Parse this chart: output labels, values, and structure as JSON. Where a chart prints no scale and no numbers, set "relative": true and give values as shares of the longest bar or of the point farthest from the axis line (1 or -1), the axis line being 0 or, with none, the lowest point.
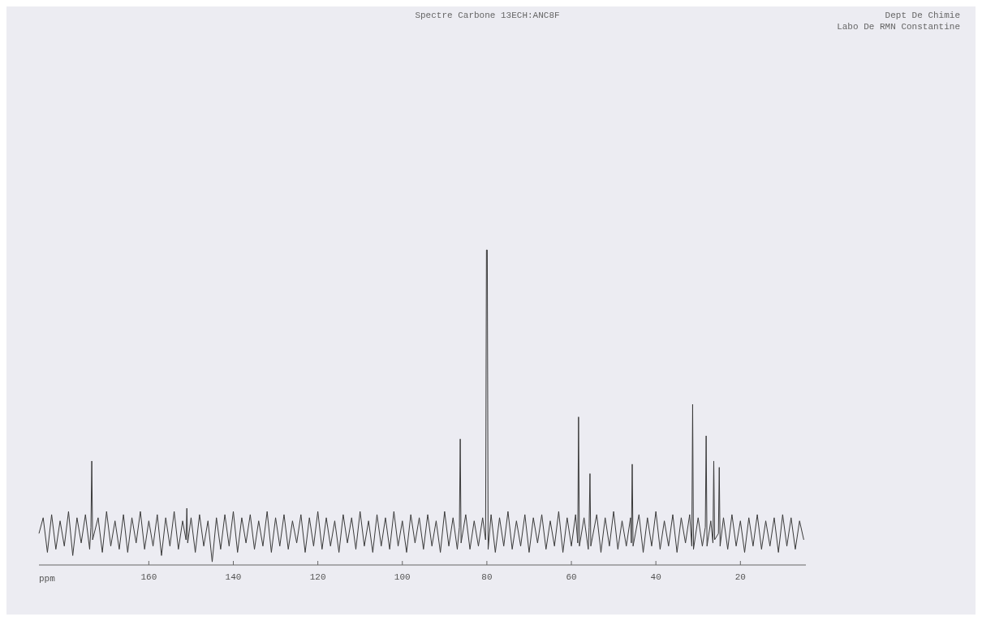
{
  "chart_data": {
    "type": "line",
    "title": "Spectre Carbone 13ECH:ANC8F",
    "xlabel": "ppm",
    "annotations": [
      "Dept De Chimie",
      "Labo De RMN Constantine"
    ],
    "relative": true,
    "xlim": [
      186,
      4.5
    ],
    "xticks": [
      160,
      140,
      120,
      100,
      80,
      60,
      40,
      20
    ],
    "grid": false,
    "marker": "none",
    "line_style": "solid",
    "series": [
      {
        "color": "#3a3a3a",
        "x": [
          186,
          185,
          184,
          183,
          182,
          181,
          180,
          179,
          178,
          177,
          176,
          175,
          174,
          173.7,
          173.5,
          173.3,
          172,
          171,
          170,
          169,
          168,
          167,
          166,
          165,
          164,
          163,
          162,
          161,
          160,
          159,
          158,
          157,
          156,
          155,
          154,
          153,
          152,
          151.2,
          151,
          150.8,
          150,
          149,
          148,
          147,
          146,
          145,
          144,
          143,
          142,
          141,
          140,
          139,
          138,
          137,
          136,
          135,
          134,
          133,
          132,
          131,
          130,
          129,
          128,
          127,
          126,
          125,
          124,
          123,
          122,
          121,
          120,
          119,
          118,
          117,
          116,
          115,
          114,
          113,
          112,
          111,
          110,
          109,
          108,
          107,
          106,
          105,
          104,
          103,
          102,
          101,
          100,
          99,
          98,
          97,
          96,
          95,
          94,
          93,
          92,
          91,
          90,
          89,
          88,
          87,
          86.5,
          86.3,
          86.1,
          85,
          84,
          83,
          82,
          81,
          80.3,
          80.1,
          79.9,
          79.7,
          79,
          78,
          77,
          76,
          75,
          74,
          73,
          72,
          71,
          70,
          69,
          68,
          67,
          66,
          65,
          64,
          63,
          62,
          61,
          60,
          59,
          58.5,
          58.3,
          58.1,
          57,
          56,
          55.8,
          55.6,
          55.4,
          54,
          53,
          52,
          51,
          50,
          49,
          48,
          47,
          46,
          45.8,
          45.6,
          45.4,
          44,
          43,
          42,
          41,
          40,
          39,
          38,
          37,
          36,
          35,
          34,
          33,
          32,
          31.5,
          31.3,
          31.1,
          30,
          29,
          28.3,
          28.1,
          27.9,
          27,
          26.5,
          26.3,
          26.1,
          25.2,
          25,
          24.8,
          24,
          23,
          22,
          21,
          20,
          19,
          18,
          17,
          16,
          15,
          14,
          13,
          12,
          11,
          10,
          9,
          8,
          7,
          6,
          5
        ],
        "values": [
          0.1,
          0.15,
          0.04,
          0.16,
          0.05,
          0.14,
          0.06,
          0.17,
          0.03,
          0.15,
          0.07,
          0.16,
          0.05,
          0.12,
          0.33,
          0.08,
          0.15,
          0.04,
          0.17,
          0.06,
          0.14,
          0.05,
          0.16,
          0.04,
          0.15,
          0.07,
          0.17,
          0.05,
          0.14,
          0.06,
          0.16,
          0.03,
          0.15,
          0.06,
          0.17,
          0.05,
          0.14,
          0.08,
          0.18,
          0.07,
          0.15,
          0.04,
          0.16,
          0.06,
          0.14,
          0.01,
          0.15,
          0.05,
          0.16,
          0.06,
          0.17,
          0.04,
          0.15,
          0.07,
          0.16,
          0.05,
          0.14,
          0.06,
          0.17,
          0.04,
          0.15,
          0.06,
          0.16,
          0.05,
          0.14,
          0.07,
          0.16,
          0.04,
          0.15,
          0.06,
          0.17,
          0.05,
          0.15,
          0.06,
          0.14,
          0.04,
          0.16,
          0.07,
          0.15,
          0.05,
          0.17,
          0.06,
          0.14,
          0.04,
          0.16,
          0.06,
          0.15,
          0.05,
          0.17,
          0.06,
          0.14,
          0.04,
          0.16,
          0.07,
          0.15,
          0.05,
          0.16,
          0.06,
          0.14,
          0.04,
          0.17,
          0.06,
          0.15,
          0.05,
          0.12,
          0.4,
          0.07,
          0.16,
          0.05,
          0.14,
          0.06,
          0.15,
          0.08,
          1,
          1,
          0.05,
          0.16,
          0.04,
          0.15,
          0.06,
          0.17,
          0.05,
          0.14,
          0.06,
          0.16,
          0.04,
          0.15,
          0.07,
          0.16,
          0.05,
          0.14,
          0.06,
          0.17,
          0.04,
          0.15,
          0.06,
          0.16,
          0.07,
          0.47,
          0.06,
          0.15,
          0.05,
          0.12,
          0.29,
          0.06,
          0.16,
          0.04,
          0.15,
          0.06,
          0.17,
          0.05,
          0.14,
          0.06,
          0.15,
          0.07,
          0.32,
          0.06,
          0.16,
          0.04,
          0.15,
          0.06,
          0.17,
          0.05,
          0.14,
          0.06,
          0.16,
          0.04,
          0.15,
          0.07,
          0.16,
          0.06,
          0.51,
          0.05,
          0.15,
          0.06,
          0.12,
          0.41,
          0.06,
          0.14,
          0.07,
          0.33,
          0.08,
          0.1,
          0.31,
          0.06,
          0.15,
          0.05,
          0.16,
          0.06,
          0.14,
          0.04,
          0.15,
          0.06,
          0.16,
          0.05,
          0.14,
          0.06,
          0.15,
          0.04,
          0.16,
          0.06,
          0.15,
          0.05,
          0.14,
          0.08
        ]
      }
    ]
  }
}
